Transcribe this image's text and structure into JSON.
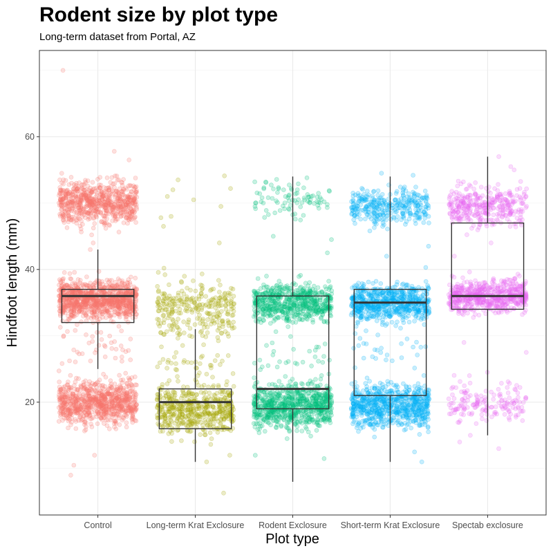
{
  "chart_data": {
    "type": "box+jitter",
    "title": "Rodent size by plot type",
    "subtitle": "Long-term dataset from Portal, AZ",
    "xlabel": "Plot type",
    "ylabel": "Hindfoot length (mm)",
    "ylim": [
      3,
      73
    ],
    "yticks": [
      20,
      40,
      60
    ],
    "grid": true,
    "categories": [
      "Control",
      "Long-term Krat Exclosure",
      "Rodent Exclosure",
      "Short-term Krat Exclosure",
      "Spectab exclosure"
    ],
    "colors": [
      "#F8766D",
      "#A3A500",
      "#00BF7D",
      "#00B0F6",
      "#E76BF3"
    ],
    "boxes": [
      {
        "category": "Control",
        "whisker_low": 25,
        "q1": 32,
        "median": 36,
        "q3": 37,
        "whisker_high": 43
      },
      {
        "category": "Long-term Krat Exclosure",
        "whisker_low": 11,
        "q1": 16,
        "median": 20,
        "q3": 22,
        "whisker_high": 31
      },
      {
        "category": "Rodent Exclosure",
        "whisker_low": 8,
        "q1": 19,
        "median": 22,
        "q3": 36,
        "whisker_high": 54
      },
      {
        "category": "Short-term Krat Exclosure",
        "whisker_low": 11,
        "q1": 21,
        "median": 35,
        "q3": 37,
        "whisker_high": 54
      },
      {
        "category": "Spectab exclosure",
        "whisker_low": 15,
        "q1": 34,
        "median": 36,
        "q3": 47,
        "whisker_high": 57
      }
    ],
    "point_clusters": [
      {
        "category": "Control",
        "clusters": [
          {
            "center": 50,
            "spread": 3.0,
            "count": 700
          },
          {
            "center": 35.5,
            "spread": 2.5,
            "count": 1000
          },
          {
            "center": 20,
            "spread": 3.0,
            "count": 800
          },
          {
            "center": 28,
            "spread": 3.5,
            "count": 45
          }
        ],
        "outliers": [
          70,
          57.8,
          56.5,
          10.5,
          9,
          12,
          44,
          43
        ]
      },
      {
        "category": "Long-term Krat Exclosure",
        "clusters": [
          {
            "center": 34,
            "spread": 3.5,
            "count": 280
          },
          {
            "center": 19,
            "spread": 3.5,
            "count": 500
          },
          {
            "center": 26,
            "spread": 3.5,
            "count": 40
          }
        ],
        "outliers": [
          52.2,
          54.1,
          53.5,
          52,
          51,
          50.5,
          49.5,
          48,
          47.8,
          46.5,
          44,
          40.2,
          6.3,
          11,
          12
        ]
      },
      {
        "category": "Rodent Exclosure",
        "clusters": [
          {
            "center": 35,
            "spread": 2.5,
            "count": 600
          },
          {
            "center": 19.5,
            "spread": 3.0,
            "count": 750
          },
          {
            "center": 50.5,
            "spread": 2.2,
            "count": 85
          },
          {
            "center": 27,
            "spread": 3.5,
            "count": 30
          }
        ],
        "outliers": [
          53.8,
          53.2,
          45,
          44.5,
          42.5,
          39,
          12,
          11.5
        ]
      },
      {
        "category": "Short-term Krat Exclosure",
        "clusters": [
          {
            "center": 35,
            "spread": 2.5,
            "count": 650
          },
          {
            "center": 19.5,
            "spread": 3.0,
            "count": 700
          },
          {
            "center": 49.5,
            "spread": 2.5,
            "count": 320
          },
          {
            "center": 28,
            "spread": 3.5,
            "count": 30
          }
        ],
        "outliers": [
          54.5,
          54.2,
          43.5,
          42,
          40.3,
          11,
          12.5
        ]
      },
      {
        "category": "Spectab exclosure",
        "clusters": [
          {
            "center": 36,
            "spread": 2.2,
            "count": 600
          },
          {
            "center": 49.5,
            "spread": 2.8,
            "count": 350
          },
          {
            "center": 20,
            "spread": 2.5,
            "count": 160
          }
        ],
        "outliers": [
          57,
          55.5,
          55,
          44,
          42,
          29,
          27.5,
          24.5,
          24,
          13,
          14,
          15
        ]
      }
    ]
  }
}
